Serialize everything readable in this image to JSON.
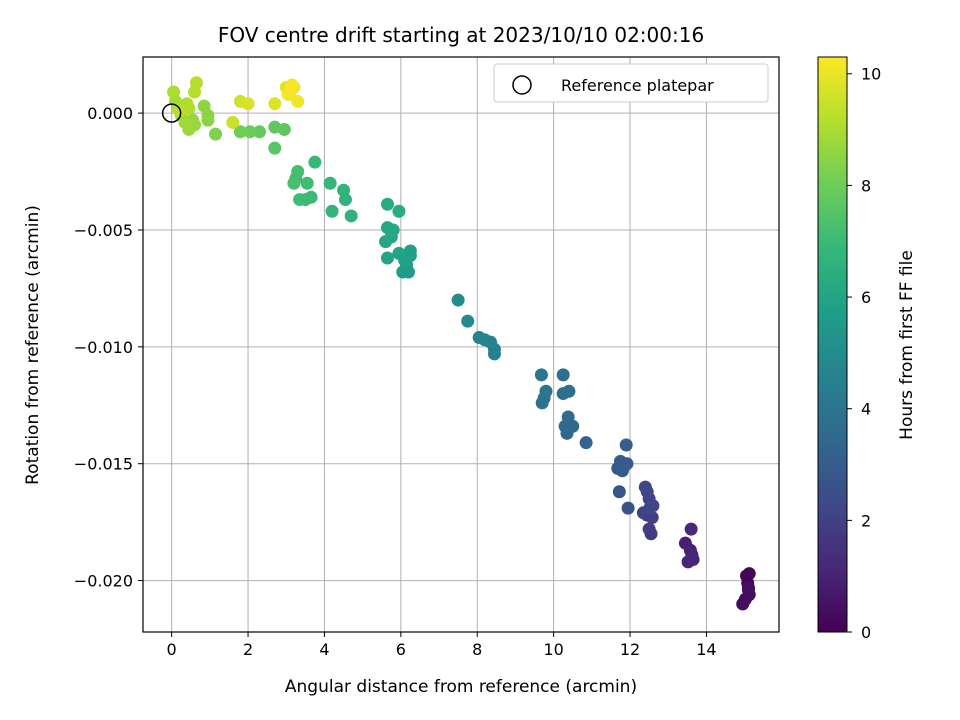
{
  "chart_data": {
    "type": "scatter",
    "title": "FOV centre drift starting at 2023/10/10 02:00:16",
    "xlabel": "Angular distance from reference (arcmin)",
    "ylabel": "Rotation from reference (arcmin)",
    "xlim": [
      -0.75,
      15.9
    ],
    "ylim": [
      -0.0222,
      0.0024
    ],
    "xticks": [
      0,
      2,
      4,
      6,
      8,
      10,
      12,
      14
    ],
    "xtick_labels": [
      "0",
      "2",
      "4",
      "6",
      "8",
      "10",
      "12",
      "14"
    ],
    "yticks": [
      0.0,
      -0.005,
      -0.01,
      -0.015,
      -0.02
    ],
    "ytick_labels": [
      "0.000",
      "−0.005",
      "−0.010",
      "−0.015",
      "−0.020"
    ],
    "grid": true,
    "legend": {
      "placement": "upper right",
      "entries": [
        "Reference platepar"
      ]
    },
    "reference_point": {
      "x": 0,
      "y": 0,
      "marker": "open-circle"
    },
    "colorbar": {
      "label": "Hours from first FF file",
      "colormap": "viridis",
      "range": [
        0,
        10.3
      ],
      "ticks": [
        0,
        2,
        4,
        6,
        8,
        10
      ],
      "tick_labels": [
        "0",
        "2",
        "4",
        "6",
        "8",
        "10"
      ]
    },
    "points": [
      {
        "x": 15.05,
        "y": -0.0198,
        "h": 0.05
      },
      {
        "x": 15.12,
        "y": -0.0197,
        "h": 0.1
      },
      {
        "x": 15.08,
        "y": -0.0201,
        "h": 0.15
      },
      {
        "x": 15.1,
        "y": -0.0204,
        "h": 0.2
      },
      {
        "x": 15.12,
        "y": -0.0206,
        "h": 0.25
      },
      {
        "x": 15.02,
        "y": -0.0208,
        "h": 0.3
      },
      {
        "x": 14.95,
        "y": -0.021,
        "h": 0.35
      },
      {
        "x": 15.1,
        "y": -0.0203,
        "h": 0.4
      },
      {
        "x": 13.45,
        "y": -0.0184,
        "h": 0.9
      },
      {
        "x": 13.58,
        "y": -0.0187,
        "h": 0.95
      },
      {
        "x": 13.62,
        "y": -0.0189,
        "h": 1.0
      },
      {
        "x": 13.52,
        "y": -0.0192,
        "h": 1.05
      },
      {
        "x": 13.65,
        "y": -0.0191,
        "h": 1.1
      },
      {
        "x": 13.6,
        "y": -0.0178,
        "h": 1.15
      },
      {
        "x": 12.55,
        "y": -0.018,
        "h": 1.8
      },
      {
        "x": 12.5,
        "y": -0.0178,
        "h": 1.85
      },
      {
        "x": 12.58,
        "y": -0.0173,
        "h": 1.9
      },
      {
        "x": 12.45,
        "y": -0.0172,
        "h": 1.95
      },
      {
        "x": 12.35,
        "y": -0.0171,
        "h": 2.0
      },
      {
        "x": 12.5,
        "y": -0.0165,
        "h": 2.05
      },
      {
        "x": 12.6,
        "y": -0.0168,
        "h": 2.1
      },
      {
        "x": 12.45,
        "y": -0.0162,
        "h": 2.15
      },
      {
        "x": 12.4,
        "y": -0.016,
        "h": 2.2
      },
      {
        "x": 12.52,
        "y": -0.0169,
        "h": 2.25
      },
      {
        "x": 11.95,
        "y": -0.0169,
        "h": 2.6
      },
      {
        "x": 11.72,
        "y": -0.0162,
        "h": 2.7
      },
      {
        "x": 11.68,
        "y": -0.0152,
        "h": 2.8
      },
      {
        "x": 11.85,
        "y": -0.0151,
        "h": 2.85
      },
      {
        "x": 11.75,
        "y": -0.0149,
        "h": 2.9
      },
      {
        "x": 11.92,
        "y": -0.015,
        "h": 2.95
      },
      {
        "x": 11.8,
        "y": -0.0153,
        "h": 3.0
      },
      {
        "x": 11.9,
        "y": -0.0142,
        "h": 3.05
      },
      {
        "x": 10.85,
        "y": -0.0141,
        "h": 3.3
      },
      {
        "x": 10.35,
        "y": -0.0137,
        "h": 3.4
      },
      {
        "x": 10.5,
        "y": -0.0134,
        "h": 3.45
      },
      {
        "x": 10.3,
        "y": -0.0134,
        "h": 3.5
      },
      {
        "x": 10.38,
        "y": -0.013,
        "h": 3.55
      },
      {
        "x": 10.4,
        "y": -0.0119,
        "h": 3.7
      },
      {
        "x": 10.25,
        "y": -0.012,
        "h": 3.75
      },
      {
        "x": 10.25,
        "y": -0.0112,
        "h": 3.8
      },
      {
        "x": 9.7,
        "y": -0.0124,
        "h": 3.9
      },
      {
        "x": 9.75,
        "y": -0.0122,
        "h": 3.95
      },
      {
        "x": 9.8,
        "y": -0.0119,
        "h": 4.0
      },
      {
        "x": 9.68,
        "y": -0.0112,
        "h": 4.05
      },
      {
        "x": 8.45,
        "y": -0.0103,
        "h": 4.5
      },
      {
        "x": 8.45,
        "y": -0.0101,
        "h": 4.55
      },
      {
        "x": 8.35,
        "y": -0.0098,
        "h": 4.6
      },
      {
        "x": 8.2,
        "y": -0.0097,
        "h": 4.65
      },
      {
        "x": 8.05,
        "y": -0.0096,
        "h": 4.7
      },
      {
        "x": 7.75,
        "y": -0.0089,
        "h": 4.9
      },
      {
        "x": 7.5,
        "y": -0.008,
        "h": 5.0
      },
      {
        "x": 6.2,
        "y": -0.0068,
        "h": 5.6
      },
      {
        "x": 6.05,
        "y": -0.0068,
        "h": 5.65
      },
      {
        "x": 6.15,
        "y": -0.0065,
        "h": 5.7
      },
      {
        "x": 6.25,
        "y": -0.0061,
        "h": 5.75
      },
      {
        "x": 6.25,
        "y": -0.0059,
        "h": 5.8
      },
      {
        "x": 6.1,
        "y": -0.0063,
        "h": 5.85
      },
      {
        "x": 5.95,
        "y": -0.006,
        "h": 5.9
      },
      {
        "x": 5.65,
        "y": -0.0062,
        "h": 6.0
      },
      {
        "x": 5.6,
        "y": -0.0055,
        "h": 6.05
      },
      {
        "x": 5.75,
        "y": -0.0053,
        "h": 6.1
      },
      {
        "x": 5.8,
        "y": -0.005,
        "h": 6.15
      },
      {
        "x": 5.65,
        "y": -0.0049,
        "h": 6.2
      },
      {
        "x": 5.95,
        "y": -0.0042,
        "h": 6.3
      },
      {
        "x": 5.65,
        "y": -0.0039,
        "h": 6.35
      },
      {
        "x": 4.7,
        "y": -0.0044,
        "h": 6.6
      },
      {
        "x": 4.55,
        "y": -0.0037,
        "h": 6.65
      },
      {
        "x": 4.5,
        "y": -0.0033,
        "h": 6.7
      },
      {
        "x": 4.2,
        "y": -0.0042,
        "h": 6.75
      },
      {
        "x": 4.15,
        "y": -0.003,
        "h": 6.8
      },
      {
        "x": 3.75,
        "y": -0.0021,
        "h": 6.9
      },
      {
        "x": 3.65,
        "y": -0.0036,
        "h": 6.95
      },
      {
        "x": 3.5,
        "y": -0.0037,
        "h": 7.0
      },
      {
        "x": 3.35,
        "y": -0.0037,
        "h": 7.05
      },
      {
        "x": 3.55,
        "y": -0.003,
        "h": 7.1
      },
      {
        "x": 3.25,
        "y": -0.0028,
        "h": 7.15
      },
      {
        "x": 3.3,
        "y": -0.0025,
        "h": 7.2
      },
      {
        "x": 3.2,
        "y": -0.003,
        "h": 7.25
      },
      {
        "x": 2.7,
        "y": -0.0015,
        "h": 7.6
      },
      {
        "x": 2.95,
        "y": -0.0007,
        "h": 7.7
      },
      {
        "x": 2.7,
        "y": -0.0006,
        "h": 7.75
      },
      {
        "x": 2.3,
        "y": -0.0008,
        "h": 7.85
      },
      {
        "x": 2.05,
        "y": -0.0008,
        "h": 7.95
      },
      {
        "x": 1.8,
        "y": -0.0008,
        "h": 8.05
      },
      {
        "x": 1.15,
        "y": -0.0009,
        "h": 8.3
      },
      {
        "x": 0.95,
        "y": -0.0003,
        "h": 8.45
      },
      {
        "x": 0.95,
        "y": -0.0001,
        "h": 8.5
      },
      {
        "x": 0.85,
        "y": 0.0003,
        "h": 8.55
      },
      {
        "x": 0.55,
        "y": -0.0003,
        "h": 8.65
      },
      {
        "x": 0.6,
        "y": -0.0005,
        "h": 8.7
      },
      {
        "x": 0.45,
        "y": -0.0007,
        "h": 8.75
      },
      {
        "x": 0.35,
        "y": -0.0004,
        "h": 8.8
      },
      {
        "x": 0.25,
        "y": -0.0001,
        "h": 8.85
      },
      {
        "x": 0.15,
        "y": 0.0002,
        "h": 8.9
      },
      {
        "x": 0.1,
        "y": 0.0005,
        "h": 8.95
      },
      {
        "x": 0.05,
        "y": 0.0009,
        "h": 9.0
      },
      {
        "x": 0.4,
        "y": 0.0004,
        "h": 9.05
      },
      {
        "x": 0.45,
        "y": 0.0002,
        "h": 9.1
      },
      {
        "x": 0.6,
        "y": 0.0009,
        "h": 9.15
      },
      {
        "x": 0.65,
        "y": 0.0013,
        "h": 9.2
      },
      {
        "x": 0.2,
        "y": 0.0001,
        "h": 9.25
      },
      {
        "x": 1.6,
        "y": -0.0004,
        "h": 9.5
      },
      {
        "x": 1.8,
        "y": 0.0005,
        "h": 9.6
      },
      {
        "x": 2.0,
        "y": 0.0004,
        "h": 9.7
      },
      {
        "x": 2.7,
        "y": 0.0004,
        "h": 9.8
      },
      {
        "x": 3.0,
        "y": 0.0011,
        "h": 9.9
      },
      {
        "x": 3.1,
        "y": 0.0009,
        "h": 10.0
      },
      {
        "x": 3.2,
        "y": 0.0011,
        "h": 10.05
      },
      {
        "x": 3.3,
        "y": 0.0005,
        "h": 10.1
      },
      {
        "x": 3.05,
        "y": 0.0008,
        "h": 10.15
      },
      {
        "x": 3.15,
        "y": 0.0012,
        "h": 10.2
      }
    ]
  }
}
